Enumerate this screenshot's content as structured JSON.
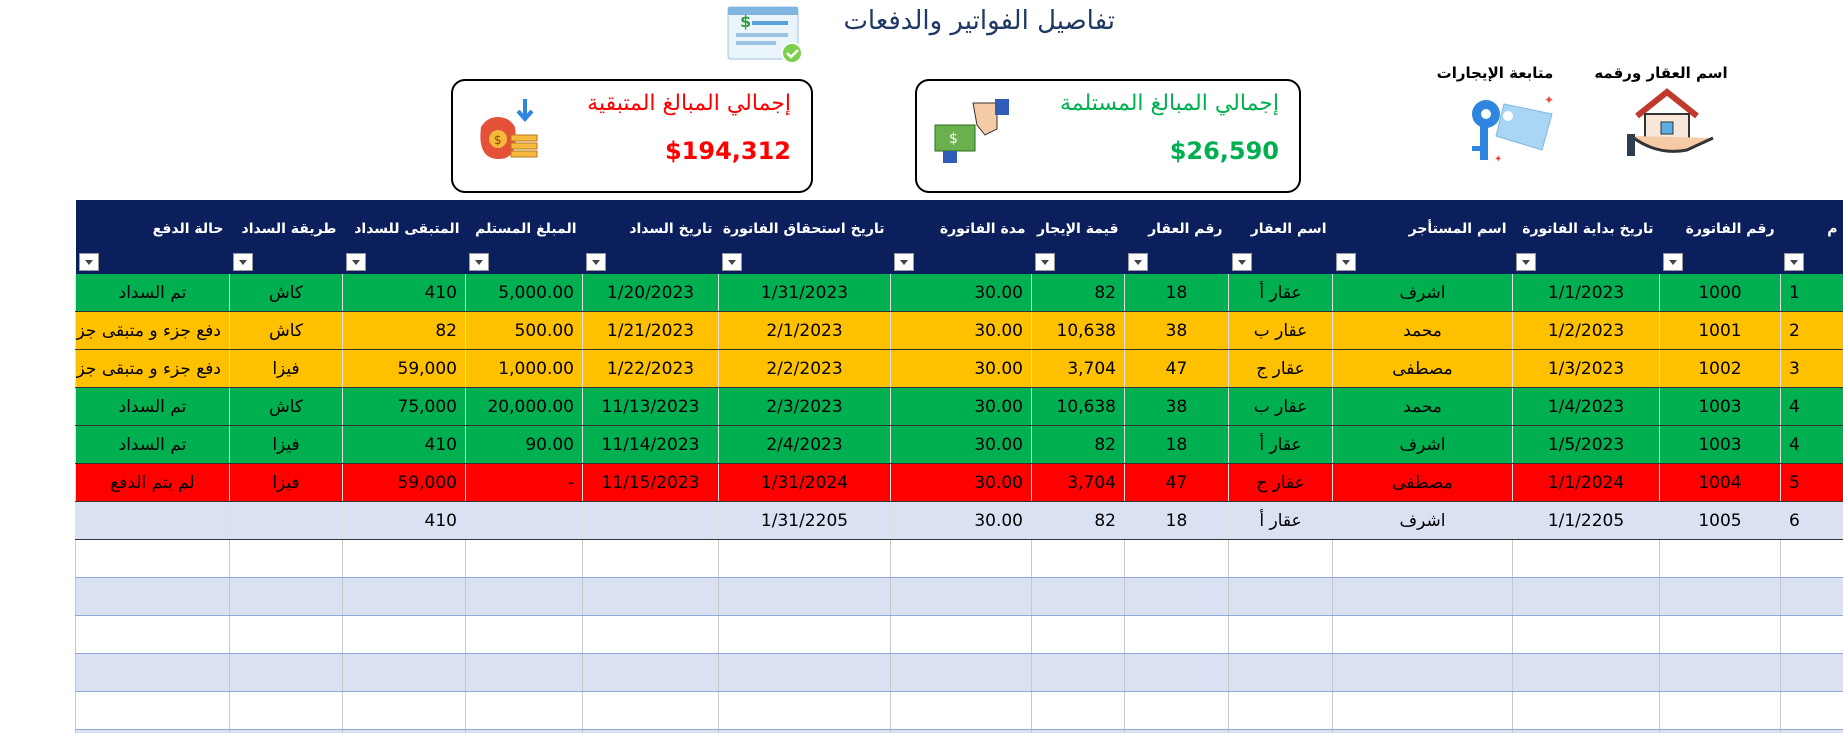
{
  "header": {
    "title": "تفاصيل الفواتير والدفعات"
  },
  "nav": [
    {
      "label": "اسم العقار ورقمه"
    },
    {
      "label": "متابعة الإيجارات"
    }
  ],
  "cards": [
    {
      "title": "إجمالي المبالغ المستلمة",
      "value": "$26,590",
      "color": "#00b050"
    },
    {
      "title": "إجمالي المبالغ المتبقية",
      "value": "$194,312",
      "color": "#ff0000"
    }
  ],
  "table": {
    "columns": [
      "م",
      "رقم الفاتورة",
      "تاريخ بداية الفاتورة",
      "اسم المستأجر",
      "اسم العقار",
      "رقم العقار",
      "قيمة الإيجار",
      "مدة الفاتورة",
      "تاريخ استحقاق الفاتورة",
      "تاريخ السداد",
      "المبلغ المستلم",
      "المتبقى للسداد",
      "طريقة السداد",
      "حالة الدفع"
    ],
    "rows": [
      {
        "color": "#00b050",
        "cells": [
          "1",
          "1000",
          "1/1/2023",
          "اشرف",
          "عقار أ",
          "18",
          "82",
          "30.00",
          "1/31/2023",
          "1/20/2023",
          "5,000.00",
          "410",
          "كاش",
          "تم السداد"
        ]
      },
      {
        "color": "#ffc000",
        "cells": [
          "2",
          "1001",
          "1/2/2023",
          "محمد",
          "عقار ب",
          "38",
          "10,638",
          "30.00",
          "2/1/2023",
          "1/21/2023",
          "500.00",
          "82",
          "كاش",
          "دفع جزء و متبقى جزء"
        ]
      },
      {
        "color": "#ffc000",
        "cells": [
          "3",
          "1002",
          "1/3/2023",
          "مصطفى",
          "عقار ج",
          "47",
          "3,704",
          "30.00",
          "2/2/2023",
          "1/22/2023",
          "1,000.00",
          "59,000",
          "فيزا",
          "دفع جزء و متبقى جزء"
        ]
      },
      {
        "color": "#00b050",
        "cells": [
          "4",
          "1003",
          "1/4/2023",
          "محمد",
          "عقار ب",
          "38",
          "10,638",
          "30.00",
          "2/3/2023",
          "11/13/2023",
          "20,000.00",
          "75,000",
          "كاش",
          "تم السداد"
        ]
      },
      {
        "color": "#00b050",
        "cells": [
          "4",
          "1003",
          "1/5/2023",
          "اشرف",
          "عقار أ",
          "18",
          "82",
          "30.00",
          "2/4/2023",
          "11/14/2023",
          "90.00",
          "410",
          "فيزا",
          "تم السداد"
        ]
      },
      {
        "color": "#ff0000",
        "cells": [
          "5",
          "1004",
          "1/1/2024",
          "مصطفى",
          "عقار ج",
          "47",
          "3,704",
          "30.00",
          "1/31/2024",
          "11/15/2023",
          "-",
          "59,000",
          "فيزا",
          "لم يتم الدفع"
        ]
      },
      {
        "color": "#d9e1f2",
        "cells": [
          "6",
          "1005",
          "1/1/2205",
          "اشرف",
          "عقار أ",
          "18",
          "82",
          "30.00",
          "1/31/2205",
          null,
          null,
          "410",
          null,
          null
        ]
      }
    ]
  }
}
